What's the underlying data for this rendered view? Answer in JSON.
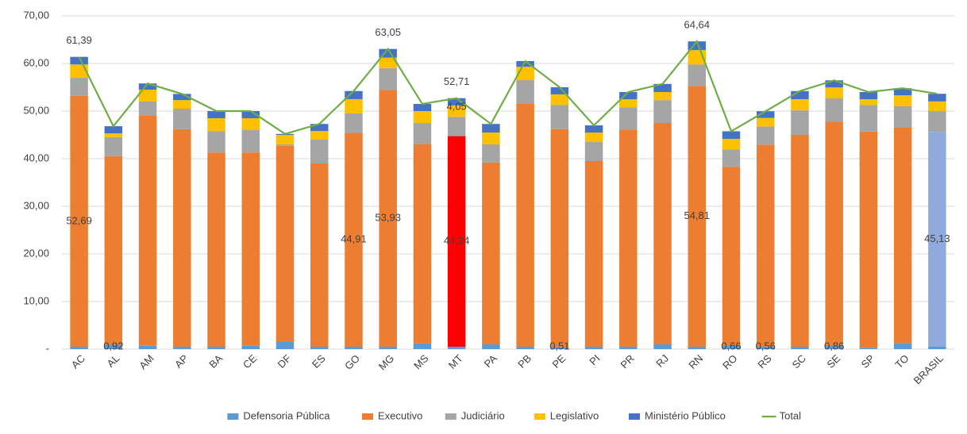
{
  "chart_data": {
    "type": "bar",
    "stacked": true,
    "categories": [
      "AC",
      "AL",
      "AM",
      "AP",
      "BA",
      "CE",
      "DF",
      "ES",
      "GO",
      "MG",
      "MS",
      "MT",
      "PA",
      "PB",
      "PE",
      "PI",
      "PR",
      "RJ",
      "RN",
      "RO",
      "RS",
      "SC",
      "SE",
      "SP",
      "TO",
      "BRASIL"
    ],
    "ylim": [
      0,
      70
    ],
    "yticks": [
      {
        "value": 0,
        "label": "-"
      },
      {
        "value": 10,
        "label": "10,00"
      },
      {
        "value": 20,
        "label": "20,00"
      },
      {
        "value": 30,
        "label": "30,00"
      },
      {
        "value": 40,
        "label": "40,00"
      },
      {
        "value": 50,
        "label": "50,00"
      },
      {
        "value": 60,
        "label": "60,00"
      },
      {
        "value": 70,
        "label": "70,00"
      }
    ],
    "grid": true,
    "legend": "bottom",
    "series": [
      {
        "name": "Defensoria Pública",
        "color": "#5b9bd5",
        "values": [
          0.5,
          0.92,
          0.7,
          0.5,
          0.5,
          0.7,
          1.5,
          0.5,
          0.5,
          0.5,
          1.2,
          0.5,
          1.0,
          0.5,
          0.51,
          0.5,
          0.5,
          1.0,
          0.5,
          0.66,
          0.56,
          0.5,
          0.86,
          0.3,
          1.3,
          0.5
        ],
        "value_labels": [
          null,
          "0,92",
          null,
          null,
          null,
          null,
          null,
          null,
          null,
          null,
          null,
          null,
          null,
          null,
          "0,51",
          null,
          null,
          null,
          null,
          "0,66",
          "0,56",
          null,
          "0,86",
          null,
          null,
          null
        ]
      },
      {
        "name": "Executivo",
        "color": "#ed7d31",
        "point_colors": [
          null,
          null,
          null,
          null,
          null,
          null,
          null,
          null,
          null,
          null,
          null,
          "#ff0000",
          null,
          null,
          null,
          null,
          null,
          null,
          null,
          null,
          null,
          null,
          null,
          null,
          null,
          "#8faadc"
        ],
        "values": [
          52.69,
          39.6,
          48.3,
          45.7,
          40.8,
          40.6,
          41.2,
          38.5,
          44.91,
          53.93,
          41.8,
          44.24,
          38.2,
          51.0,
          45.7,
          39.0,
          45.5,
          46.5,
          54.81,
          37.6,
          42.4,
          44.5,
          46.9,
          45.4,
          45.2,
          45.13
        ],
        "value_labels": [
          "52,69",
          null,
          null,
          null,
          null,
          null,
          null,
          null,
          "44,91",
          "53,93",
          null,
          "44,24",
          null,
          null,
          null,
          null,
          null,
          null,
          "54,81",
          null,
          null,
          null,
          null,
          null,
          null,
          "45,13"
        ]
      },
      {
        "name": "Judiciário",
        "color": "#a5a5a5",
        "values": [
          3.8,
          4.0,
          3.0,
          4.3,
          4.5,
          4.7,
          0.3,
          5.0,
          4.1,
          4.6,
          4.5,
          4.05,
          3.8,
          5.0,
          5.1,
          4.0,
          4.8,
          4.8,
          4.5,
          3.7,
          3.8,
          5.2,
          4.9,
          5.6,
          4.5,
          4.4
        ],
        "value_labels": [
          null,
          null,
          null,
          null,
          null,
          null,
          null,
          null,
          null,
          null,
          null,
          "4,05",
          null,
          null,
          null,
          null,
          null,
          null,
          null,
          null,
          null,
          null,
          null,
          null,
          null,
          null
        ]
      },
      {
        "name": "Legislativo",
        "color": "#ffc000",
        "values": [
          2.8,
          0.8,
          2.5,
          1.8,
          2.7,
          2.5,
          2.0,
          1.8,
          3.0,
          2.2,
          2.5,
          2.4,
          2.5,
          2.8,
          2.2,
          2.0,
          1.7,
          1.7,
          3.0,
          2.2,
          1.8,
          2.3,
          2.3,
          1.2,
          2.3,
          2.0
        ]
      },
      {
        "name": "Ministério Público",
        "color": "#4472c4",
        "values": [
          1.6,
          1.5,
          1.3,
          1.3,
          1.5,
          1.5,
          0.2,
          1.5,
          1.7,
          1.82,
          1.5,
          1.52,
          1.8,
          1.2,
          1.5,
          1.5,
          1.5,
          1.7,
          1.83,
          1.6,
          1.4,
          1.7,
          1.5,
          1.5,
          1.5,
          1.6
        ]
      },
      {
        "name": "Total",
        "color": "#70ad47",
        "type": "line",
        "values": [
          61.39,
          46.82,
          55.8,
          53.6,
          50.0,
          50.0,
          45.2,
          47.3,
          54.21,
          63.05,
          51.5,
          52.71,
          47.3,
          60.5,
          55.01,
          47.0,
          54.0,
          55.7,
          64.64,
          45.76,
          49.96,
          54.2,
          56.46,
          54.0,
          54.8,
          53.63
        ],
        "value_labels": [
          "61,39",
          null,
          null,
          null,
          null,
          null,
          null,
          null,
          null,
          "63,05",
          null,
          "52,71",
          null,
          null,
          null,
          null,
          null,
          null,
          "64,64",
          null,
          null,
          null,
          null,
          null,
          null,
          null
        ]
      }
    ]
  }
}
